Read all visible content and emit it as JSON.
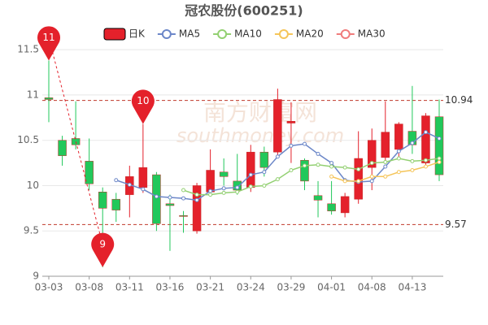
{
  "chart_data": {
    "type": "candlestick",
    "title": "冠农股份(600251)",
    "watermark": [
      "南方财富网",
      "southmoney.com"
    ],
    "categories": [
      "03-03",
      null,
      null,
      "03-08",
      null,
      null,
      "03-11",
      null,
      null,
      "03-16",
      null,
      null,
      "03-21",
      null,
      null,
      "03-24",
      null,
      null,
      "03-29",
      null,
      null,
      "04-01",
      null,
      null,
      "04-08",
      null,
      null,
      "04-13",
      null,
      null
    ],
    "ylim": [
      9,
      11.6
    ],
    "yticks": [
      9,
      9.5,
      10,
      10.5,
      11,
      11.5
    ],
    "grid": true,
    "series": [
      {
        "name": "日K",
        "type": "candlestick",
        "up_color": "#e4212b",
        "down_color": "#21c85b",
        "open": [
          10.97,
          10.5,
          10.52,
          10.27,
          9.93,
          9.85,
          9.9,
          9.98,
          10.12,
          9.8,
          9.67,
          9.5,
          9.93,
          10.15,
          10.05,
          9.98,
          10.37,
          10.37,
          10.69,
          10.28,
          9.89,
          9.8,
          9.7,
          9.85,
          10.2,
          10.31,
          10.4,
          10.6,
          10.25,
          10.76
        ],
        "close": [
          10.95,
          10.33,
          10.45,
          10.02,
          9.75,
          9.73,
          10.1,
          10.2,
          9.58,
          9.78,
          9.66,
          10.0,
          10.17,
          10.1,
          9.95,
          10.37,
          10.2,
          10.95,
          10.71,
          10.05,
          9.84,
          9.72,
          9.88,
          10.3,
          10.5,
          10.59,
          10.68,
          10.45,
          10.77,
          10.12
        ],
        "high": [
          11.38,
          10.55,
          10.93,
          10.52,
          9.98,
          9.92,
          10.22,
          10.68,
          10.15,
          9.9,
          9.72,
          10.03,
          10.4,
          10.3,
          10.35,
          10.45,
          10.43,
          11.07,
          10.92,
          10.3,
          10.05,
          10.05,
          9.92,
          10.6,
          10.63,
          10.93,
          10.7,
          11.1,
          10.8,
          10.95
        ],
        "low": [
          10.7,
          10.22,
          10.4,
          9.95,
          9.1,
          9.6,
          9.65,
          9.92,
          9.5,
          9.28,
          9.48,
          9.47,
          9.88,
          10.0,
          9.9,
          9.93,
          10.1,
          10.3,
          10.25,
          9.95,
          9.65,
          9.68,
          9.65,
          9.8,
          9.95,
          10.25,
          10.3,
          10.35,
          10.2,
          10.05
        ]
      },
      {
        "name": "MA5",
        "color": "#6c87c8",
        "values": [
          null,
          null,
          null,
          null,
          null,
          10.06,
          10.01,
          9.96,
          9.88,
          9.87,
          9.86,
          9.84,
          9.94,
          9.97,
          9.98,
          10.12,
          10.15,
          10.32,
          10.44,
          10.46,
          10.35,
          10.25,
          10.06,
          10.04,
          10.05,
          10.21,
          10.38,
          10.47,
          10.59,
          10.52
        ]
      },
      {
        "name": "MA10",
        "color": "#93d072",
        "values": [
          null,
          null,
          null,
          null,
          null,
          null,
          null,
          null,
          null,
          null,
          9.95,
          9.9,
          9.9,
          9.92,
          9.93,
          9.99,
          10.0,
          10.07,
          10.17,
          10.22,
          10.23,
          10.21,
          10.2,
          10.18,
          10.25,
          10.26,
          10.3,
          10.27,
          10.28,
          10.3
        ]
      },
      {
        "name": "MA20",
        "color": "#f5c55a",
        "values": [
          null,
          null,
          null,
          null,
          null,
          null,
          null,
          null,
          null,
          null,
          null,
          null,
          null,
          null,
          null,
          null,
          null,
          null,
          null,
          null,
          null,
          10.1,
          10.05,
          10.05,
          10.1,
          10.1,
          10.15,
          10.17,
          10.21,
          10.26
        ]
      },
      {
        "name": "MA30",
        "color": "#f07c7c"
      }
    ],
    "reference_lines": [
      {
        "value": 10.94,
        "label": "10.94"
      },
      {
        "value": 9.57,
        "label": "9.57"
      }
    ],
    "pins": [
      {
        "text": "11",
        "index": 0,
        "at": "high"
      },
      {
        "text": "9",
        "index": 4,
        "at": "low"
      },
      {
        "text": "10",
        "index": 7,
        "at": "high"
      }
    ]
  }
}
